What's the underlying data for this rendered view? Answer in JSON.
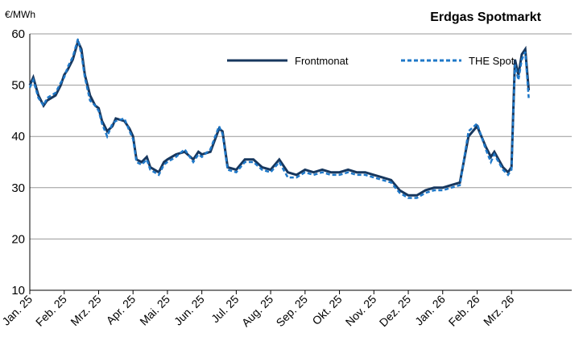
{
  "chart_data": {
    "type": "line",
    "title": "Erdgas Spotmarkt",
    "y_label": "€/MWh",
    "x": [
      0,
      0.1,
      0.25,
      0.4,
      0.5,
      0.75,
      0.9,
      1.0,
      1.1,
      1.25,
      1.4,
      1.5,
      1.6,
      1.75,
      1.9,
      2.0,
      2.1,
      2.25,
      2.4,
      2.5,
      2.75,
      2.9,
      3.0,
      3.1,
      3.25,
      3.4,
      3.5,
      3.75,
      3.9,
      4.0,
      4.25,
      4.5,
      4.75,
      4.9,
      5.0,
      5.25,
      5.5,
      5.6,
      5.75,
      6.0,
      6.25,
      6.5,
      6.75,
      7.0,
      7.25,
      7.5,
      7.75,
      8.0,
      8.25,
      8.5,
      8.75,
      9.0,
      9.25,
      9.5,
      9.75,
      10.0,
      10.25,
      10.5,
      10.75,
      11.0,
      11.25,
      11.5,
      11.75,
      12.0,
      12.25,
      12.5,
      12.75,
      13.0,
      13.25,
      13.4,
      13.5,
      13.75,
      13.9,
      14.0,
      14.1,
      14.2,
      14.3,
      14.4,
      14.5
    ],
    "series": [
      {
        "name": "Frontmonat",
        "color": "#17375e",
        "dash": false,
        "values": [
          50,
          51.5,
          48,
          46,
          47,
          48,
          50,
          52,
          53,
          55,
          58.5,
          57,
          52,
          48,
          46,
          45.5,
          43,
          41,
          42,
          43.5,
          43,
          41.5,
          40,
          35.5,
          35,
          36,
          34,
          33,
          35,
          35.5,
          36.5,
          37,
          35.5,
          37,
          36.5,
          37,
          41.5,
          41,
          34,
          33.5,
          35.5,
          35.5,
          34,
          33.5,
          35.5,
          33,
          32.5,
          33.5,
          33,
          33.5,
          33,
          33,
          33.5,
          33,
          33,
          32.5,
          32,
          31.5,
          29.5,
          28.5,
          28.5,
          29.5,
          30,
          30,
          30.5,
          31,
          40,
          42,
          38,
          36,
          37,
          34,
          33,
          34,
          55,
          52,
          56,
          57,
          49
        ]
      },
      {
        "name": "THE Spot",
        "color": "#1f78c8",
        "dash": true,
        "values": [
          49.5,
          51,
          47.5,
          46,
          47.5,
          48.5,
          50.5,
          51.5,
          53.5,
          55.5,
          59,
          56,
          51.5,
          47,
          46,
          45,
          42.5,
          40,
          42.5,
          43,
          43.5,
          41,
          39.5,
          35,
          34.5,
          35.5,
          33.5,
          32.5,
          34.5,
          35,
          36,
          37.5,
          35,
          36.5,
          36,
          37.5,
          42,
          40.5,
          33.5,
          33,
          35,
          35,
          33.5,
          33,
          35,
          32,
          32,
          33,
          32.5,
          33,
          32.5,
          32.5,
          33,
          32.5,
          32.5,
          32,
          31.5,
          31,
          29,
          28,
          28,
          29,
          29.5,
          29.5,
          30,
          30.5,
          41,
          42.5,
          37.5,
          35,
          36.5,
          33.5,
          32.5,
          33.5,
          54,
          51,
          55,
          56.5,
          47.5
        ]
      }
    ],
    "xlim": [
      0,
      15.75
    ],
    "xticks": [
      {
        "value": 0,
        "label": "Jan. 25"
      },
      {
        "value": 1,
        "label": "Feb. 25"
      },
      {
        "value": 2,
        "label": "Mrz. 25"
      },
      {
        "value": 3,
        "label": "Apr. 25"
      },
      {
        "value": 4,
        "label": "Mai. 25"
      },
      {
        "value": 5,
        "label": "Jun. 25"
      },
      {
        "value": 6,
        "label": "Jul. 25"
      },
      {
        "value": 7,
        "label": "Aug. 25"
      },
      {
        "value": 8,
        "label": "Sep. 25"
      },
      {
        "value": 9,
        "label": "Okt. 25"
      },
      {
        "value": 10,
        "label": "Nov. 25"
      },
      {
        "value": 11,
        "label": "Dez. 25"
      },
      {
        "value": 12,
        "label": "Jan. 26"
      },
      {
        "value": 13,
        "label": "Feb. 26"
      },
      {
        "value": 14,
        "label": "Mrz. 26"
      }
    ],
    "ylim": [
      10,
      60
    ],
    "yticks": [
      10,
      20,
      30,
      40,
      50,
      60
    ],
    "grid": true
  }
}
